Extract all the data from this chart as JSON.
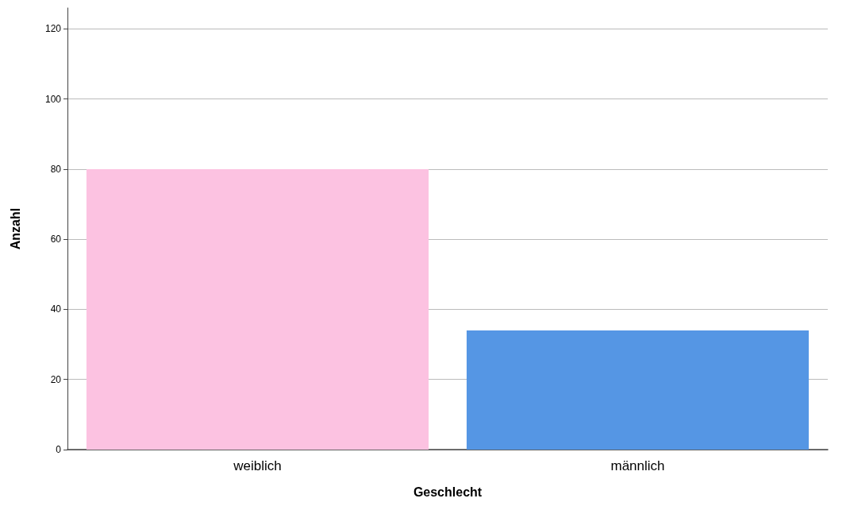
{
  "chart_data": {
    "type": "bar",
    "xlabel": "Geschlecht",
    "ylabel": "Anzahl",
    "categories": [
      "weiblich",
      "männlich"
    ],
    "values": [
      80,
      34
    ],
    "colors": [
      "#fcc2e1",
      "#5596e4"
    ],
    "ylim": [
      0,
      126
    ],
    "yticks": [
      0,
      20,
      40,
      60,
      80,
      100,
      120
    ],
    "grid": "y"
  }
}
